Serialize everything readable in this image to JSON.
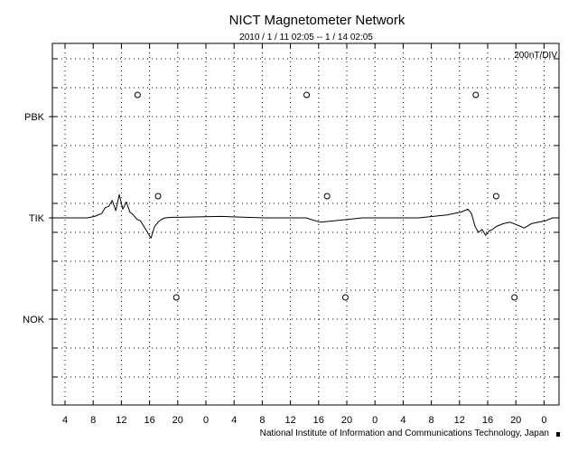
{
  "chart_data": {
    "type": "line",
    "title": "NICT Magnetometer Network",
    "subtitle": "2010 / 1 / 11   02:05 --  1 / 14   02:05",
    "scale_label": "200nT/DIV",
    "footer": "National Institute of Information and Communications Technology, Japan",
    "grid": true,
    "xlim_hours": [
      0,
      72
    ],
    "x_tick_labels": [
      "4",
      "8",
      "12",
      "16",
      "20",
      "0",
      "4",
      "8",
      "12",
      "16",
      "20",
      "0",
      "4",
      "8",
      "12",
      "16",
      "20",
      "0"
    ],
    "stations": [
      {
        "label": "PBK",
        "has_trace": false,
        "local_noon_hours": [
          10.3,
          34.3,
          58.3
        ]
      },
      {
        "label": "TIK",
        "has_trace": true,
        "local_noon_hours": [
          13.2,
          37.2,
          61.2
        ]
      },
      {
        "label": "NOK",
        "has_trace": false,
        "local_noon_hours": [
          15.8,
          39.8,
          63.8
        ]
      }
    ],
    "series": [
      {
        "x": [
          0,
          2,
          4,
          5,
          6,
          7,
          7.5,
          8,
          8.5,
          9,
          9.5,
          10,
          10.5,
          11,
          11.5,
          12,
          12.5,
          13,
          13.5,
          14,
          14.5,
          15,
          15.5,
          16,
          17,
          18,
          20,
          24,
          30,
          36,
          38,
          40,
          42,
          44,
          48,
          52,
          56,
          58,
          59,
          59.5,
          60,
          60.5,
          61,
          61.5,
          62,
          62.5,
          63,
          63.5,
          64,
          65,
          66,
          67,
          68,
          69,
          70,
          71,
          72
        ],
        "y": [
          0,
          0,
          0,
          0,
          0.05,
          0.15,
          0.35,
          0.4,
          0.6,
          0.25,
          0.8,
          0.3,
          0.55,
          0.2,
          0.1,
          -0.05,
          -0.1,
          -0.3,
          -0.5,
          -0.7,
          -0.3,
          -0.15,
          -0.05,
          0,
          0.02,
          0.02,
          0.03,
          0.05,
          0,
          0,
          -0.15,
          -0.1,
          -0.05,
          0,
          0,
          0,
          0.1,
          0.2,
          0.3,
          0.15,
          -0.3,
          -0.5,
          -0.4,
          -0.6,
          -0.45,
          -0.4,
          -0.3,
          -0.25,
          -0.2,
          -0.15,
          -0.25,
          -0.35,
          -0.2,
          -0.15,
          -0.1,
          0,
          0
        ]
      }
    ]
  }
}
